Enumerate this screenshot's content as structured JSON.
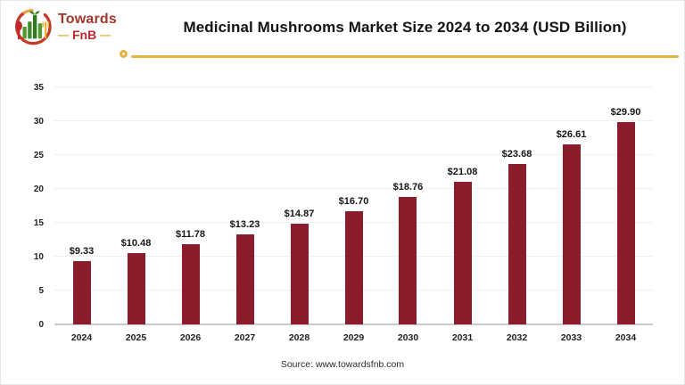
{
  "logo": {
    "title": "Towards",
    "sub": "FnB",
    "dash": "—"
  },
  "header": {
    "title": "Medicinal Mushrooms Market Size 2024 to 2034 (USD Billion)"
  },
  "chart_data": {
    "type": "bar",
    "title": "Medicinal Mushrooms Market Size 2024 to 2034 (USD Billion)",
    "categories": [
      "2024",
      "2025",
      "2026",
      "2027",
      "2028",
      "2029",
      "2030",
      "2031",
      "2032",
      "2033",
      "2034"
    ],
    "values": [
      9.33,
      10.48,
      11.78,
      13.23,
      14.87,
      16.7,
      18.76,
      21.08,
      23.68,
      26.61,
      29.9
    ],
    "value_labels": [
      "$9.33",
      "$10.48",
      "$11.78",
      "$13.23",
      "$14.87",
      "$16.70",
      "$18.76",
      "$21.08",
      "$23.68",
      "$26.61",
      "$29.90"
    ],
    "xlabel": "",
    "ylabel": "",
    "ylim": [
      0,
      35
    ],
    "yticks": [
      0,
      5,
      10,
      15,
      20,
      25,
      30,
      35
    ],
    "grid": true,
    "legend": "none",
    "bar_color": "#8b1c2c"
  },
  "footer": {
    "source": "Source: www.towardsfnb.com"
  },
  "colors": {
    "bar": "#8b1c2c",
    "accent_gold": "#e4b33e",
    "logo_red": "#c1272d",
    "logo_brown_red": "#a0372c",
    "logo_green": "#3e8a26",
    "gridline": "#f0f0f0",
    "axis": "#c9c9c9",
    "title_text": "#141414"
  }
}
